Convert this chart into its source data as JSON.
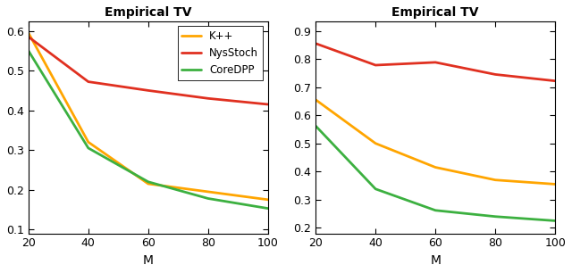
{
  "title": "Empirical TV",
  "xlabel": "M",
  "x": [
    20,
    40,
    60,
    80,
    100
  ],
  "left": {
    "kpp": [
      0.595,
      0.32,
      0.215,
      0.195,
      0.175
    ],
    "nysstoch": [
      0.585,
      0.472,
      0.45,
      0.43,
      0.415
    ],
    "coredpp": [
      0.55,
      0.305,
      0.22,
      0.178,
      0.153
    ],
    "ylim": [
      0.09,
      0.625
    ],
    "yticks": [
      0.1,
      0.2,
      0.3,
      0.4,
      0.5,
      0.6
    ]
  },
  "right": {
    "kpp": [
      0.655,
      0.5,
      0.415,
      0.37,
      0.355
    ],
    "nysstoch": [
      0.855,
      0.778,
      0.788,
      0.745,
      0.722
    ],
    "coredpp": [
      0.562,
      0.338,
      0.262,
      0.24,
      0.225
    ],
    "ylim": [
      0.18,
      0.935
    ],
    "yticks": [
      0.2,
      0.3,
      0.4,
      0.5,
      0.6,
      0.7,
      0.8,
      0.9
    ]
  },
  "colors": {
    "kpp": "#FFA500",
    "nysstoch": "#E03020",
    "coredpp": "#3CB040"
  },
  "legend_labels": [
    "K++",
    "NysStoch",
    "CoreDPP"
  ],
  "linewidth": 2.0
}
